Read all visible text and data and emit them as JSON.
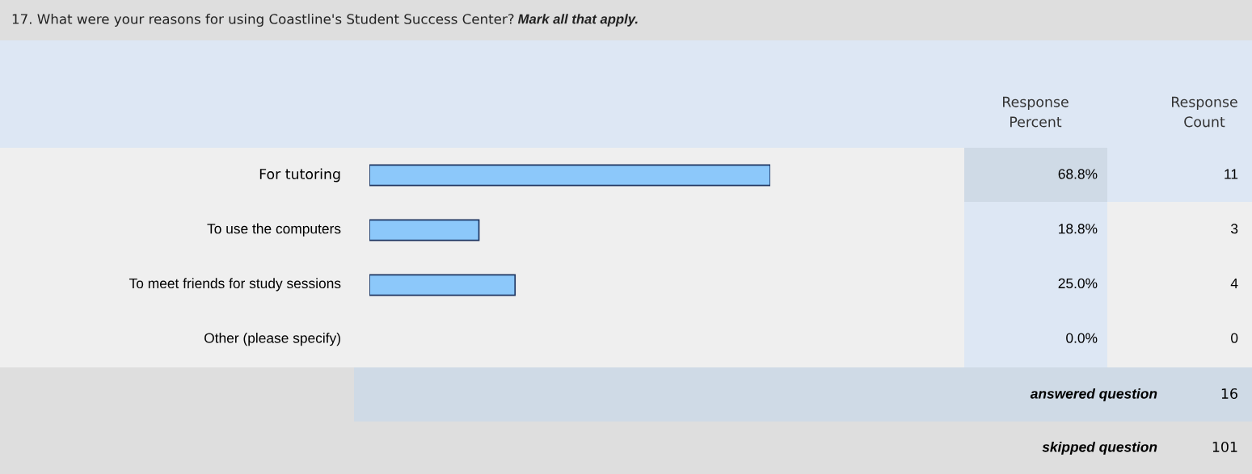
{
  "chart_data": {
    "type": "bar",
    "orientation": "horizontal",
    "title": "17. What were your reasons for using Coastline's Student Success Center?",
    "subtitle": "Mark all that apply.",
    "categories": [
      "For tutoring",
      "To use the computers",
      "To meet friends for study sessions",
      "Other (please specify)"
    ],
    "series": [
      {
        "color": "#8cc8fa",
        "values": [
          68.8,
          18.8,
          25.0,
          0.0
        ],
        "value_labels": [
          "68.8%",
          "18.8%",
          "25.0%",
          "0.0%"
        ]
      }
    ],
    "annotations": [
      "Response\nPercent",
      "Response\nCount",
      "11",
      "3",
      "4",
      "0",
      "answered question",
      "16",
      "skipped question",
      "101"
    ],
    "legend": false
  }
}
